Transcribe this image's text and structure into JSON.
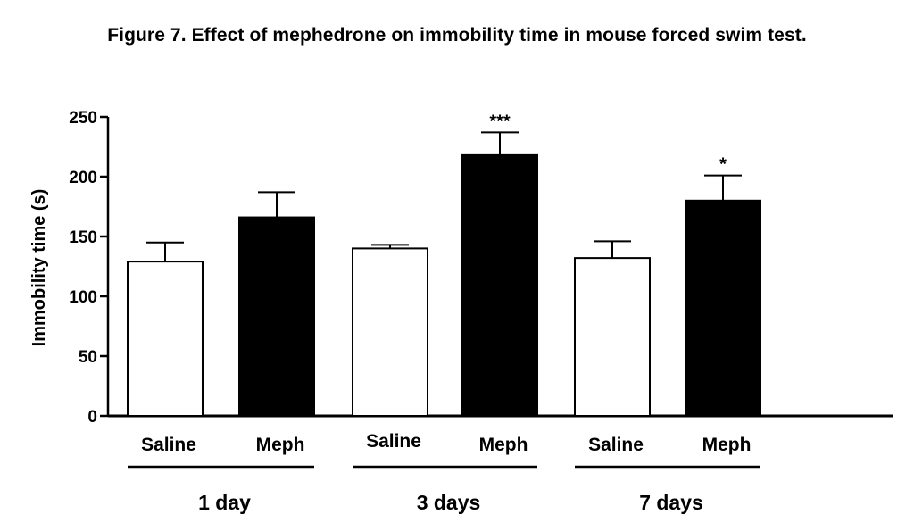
{
  "title": "Figure 7. Effect of mephedrone on immobility time in mouse forced swim test.",
  "chart_data": {
    "type": "bar",
    "ylabel": "Immobility time (s)",
    "ylim": [
      0,
      250
    ],
    "yticks": [
      0,
      50,
      100,
      150,
      200,
      250
    ],
    "groups": [
      {
        "label": "1 day",
        "bars": [
          {
            "label": "Saline",
            "value": 129,
            "error": 16,
            "fill": "#ffffff",
            "sig": ""
          },
          {
            "label": "Meph",
            "value": 166,
            "error": 21,
            "fill": "#000000",
            "sig": ""
          }
        ]
      },
      {
        "label": "3 days",
        "bars": [
          {
            "label": "Saline",
            "value": 140,
            "error": 3,
            "fill": "#ffffff",
            "sig": ""
          },
          {
            "label": "Meph",
            "value": 218,
            "error": 19,
            "fill": "#000000",
            "sig": "***"
          }
        ]
      },
      {
        "label": "7 days",
        "bars": [
          {
            "label": "Saline",
            "value": 132,
            "error": 14,
            "fill": "#ffffff",
            "sig": ""
          },
          {
            "label": "Meph",
            "value": 180,
            "error": 21,
            "fill": "#000000",
            "sig": "*"
          }
        ]
      }
    ]
  }
}
